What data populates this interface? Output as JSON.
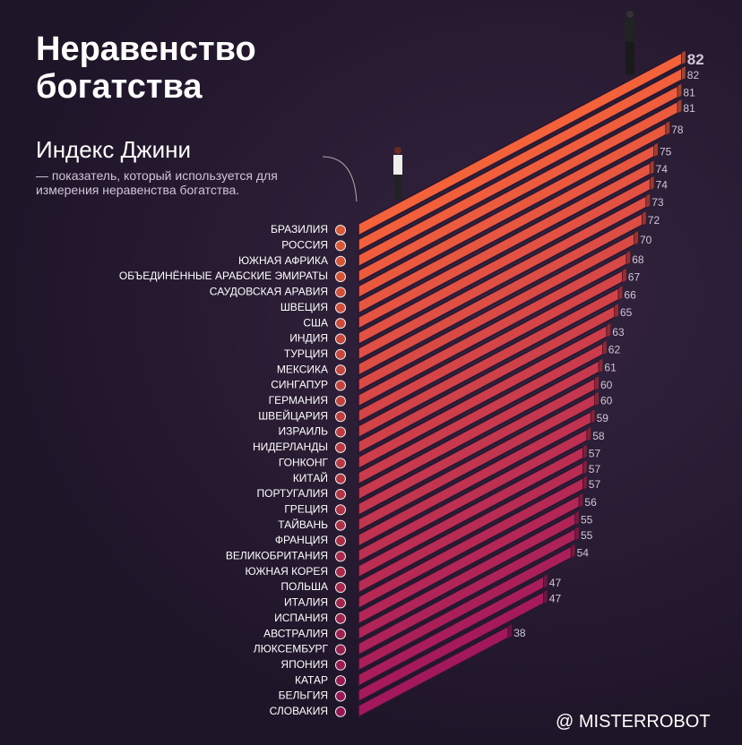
{
  "chart_data": {
    "type": "bar",
    "title": "Неравенство богатства",
    "subtitle": "Индекс Джини",
    "description": "— показатель, который используется для измерения неравенства богатства.",
    "watermark": "@ MISTERROBOT",
    "gradient": [
      "#f4623a",
      "#a3185c"
    ],
    "categories": [
      "БРАЗИЛИЯ",
      "РОССИЯ",
      "ЮЖНАЯ АФРИКА",
      "ОБЪЕДИНЁННЫЕ АРАБСКИЕ ЭМИРАТЫ",
      "САУДОВСКАЯ АРАВИЯ",
      "ШВЕЦИЯ",
      "США",
      "ИНДИЯ",
      "ТУРЦИЯ",
      "МЕКСИКА",
      "СИНГАПУР",
      "ГЕРМАНИЯ",
      "ШВЕЙЦАРИЯ",
      "ИЗРАИЛЬ",
      "НИДЕРЛАНДЫ",
      "ГОНКОНГ",
      "КИТАЙ",
      "ПОРТУГАЛИЯ",
      "ГРЕЦИЯ",
      "ТАЙВАНЬ",
      "ФРАНЦИЯ",
      "ВЕЛИКОБРИТАНИЯ",
      "ЮЖНАЯ КОРЕЯ",
      "ПОЛЬША",
      "ИТАЛИЯ",
      "ИСПАНИЯ",
      "АВСТРАЛИЯ",
      "ЛЮКСЕМБУРГ",
      "ЯПОНИЯ",
      "КАТАР",
      "БЕЛЬГИЯ",
      "СЛОВАКИЯ"
    ],
    "values": [
      82,
      82,
      81,
      81,
      78,
      75,
      74,
      74,
      73,
      72,
      70,
      68,
      67,
      66,
      65,
      63,
      62,
      61,
      60,
      60,
      59,
      58,
      57,
      57,
      57,
      56,
      55,
      55,
      54,
      47,
      47,
      38
    ]
  }
}
